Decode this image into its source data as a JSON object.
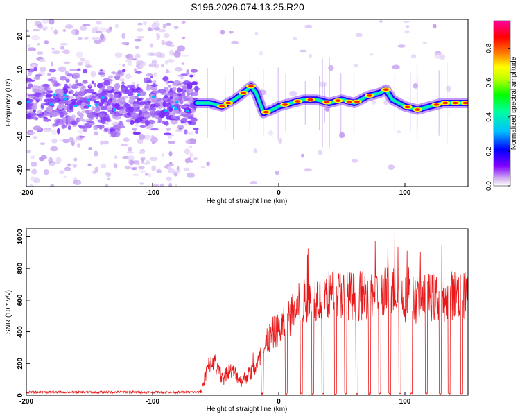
{
  "title": "S196.2026.074.13.25.R20",
  "chart_data": [
    {
      "type": "heatmap",
      "name": "spectrogram",
      "xlabel": "Height of straight line (km)",
      "ylabel": "Frequency (Hz)",
      "xlim": [
        -200,
        150
      ],
      "ylim": [
        -25,
        25
      ],
      "xticks": [
        -200,
        -100,
        0,
        100
      ],
      "xtick_labels": [
        "-200",
        "-100",
        "0",
        "100"
      ],
      "yticks": [
        -20,
        -10,
        0,
        10,
        20
      ],
      "ytick_labels": [
        "-20",
        "-10",
        "0",
        "10",
        "20"
      ],
      "colorbar": {
        "label": "Normalized spectral amplitude",
        "range": [
          0,
          0.96
        ],
        "ticks": [
          0.0,
          0.2,
          0.4,
          0.6,
          0.8
        ],
        "tick_labels": [
          "0.0",
          "0.2",
          "0.4",
          "0.6",
          "0.8"
        ],
        "colors": [
          "#ffffff",
          "#d8b8f0",
          "#8000ff",
          "#0000ff",
          "#00c0ff",
          "#00ffa0",
          "#00ff00",
          "#c0ff00",
          "#ffff00",
          "#ff8000",
          "#ff0000",
          "#ff00a0"
        ]
      },
      "ridge": {
        "x": [
          -65,
          -55,
          -45,
          -35,
          -28,
          -22,
          -18,
          -12,
          -5,
          0,
          10,
          20,
          30,
          40,
          50,
          60,
          70,
          80,
          85,
          90,
          95,
          100,
          110,
          120,
          130,
          140,
          150
        ],
        "freq": [
          0,
          0,
          -1,
          1,
          3,
          5,
          3,
          -3,
          -2,
          -1,
          0,
          1,
          1,
          0,
          1,
          0,
          2,
          3,
          4,
          1,
          0,
          -1,
          -2,
          -1,
          0,
          0,
          0
        ]
      },
      "noise_region_x": [
        -200,
        -65
      ]
    },
    {
      "type": "line",
      "name": "snr",
      "xlabel": "Height of straight line (km)",
      "ylabel": "SNR (10 * v/v)",
      "xlim": [
        -200,
        150
      ],
      "ylim": [
        0,
        1050
      ],
      "xticks": [
        -200,
        -100,
        0,
        100
      ],
      "xtick_labels": [
        "-200",
        "-100",
        "0",
        "100"
      ],
      "yticks": [
        0,
        200,
        400,
        600,
        800,
        1000
      ],
      "ytick_labels": [
        "0",
        "200",
        "400",
        "600",
        "800",
        "1000"
      ],
      "color": "#e8191a",
      "envelope": {
        "x": [
          -200,
          -62,
          -58,
          -55,
          -52,
          -48,
          -44,
          -40,
          -35,
          -30,
          -25,
          -20,
          -15,
          -10,
          -5,
          0,
          5,
          10,
          15,
          20,
          30,
          40,
          50,
          60,
          70,
          80,
          90,
          100,
          110,
          120,
          130,
          140,
          150
        ],
        "y": [
          15,
          15,
          120,
          200,
          220,
          150,
          100,
          160,
          140,
          90,
          120,
          160,
          220,
          320,
          390,
          410,
          450,
          500,
          560,
          600,
          620,
          630,
          640,
          620,
          640,
          650,
          660,
          610,
          600,
          620,
          610,
          640,
          620
        ]
      },
      "dropouts_x": [
        -13,
        6,
        18,
        27,
        35,
        45,
        53,
        62,
        72,
        80,
        88,
        96,
        105,
        117,
        128,
        135,
        145
      ],
      "spike": {
        "x": 92,
        "y": 1050
      }
    }
  ]
}
